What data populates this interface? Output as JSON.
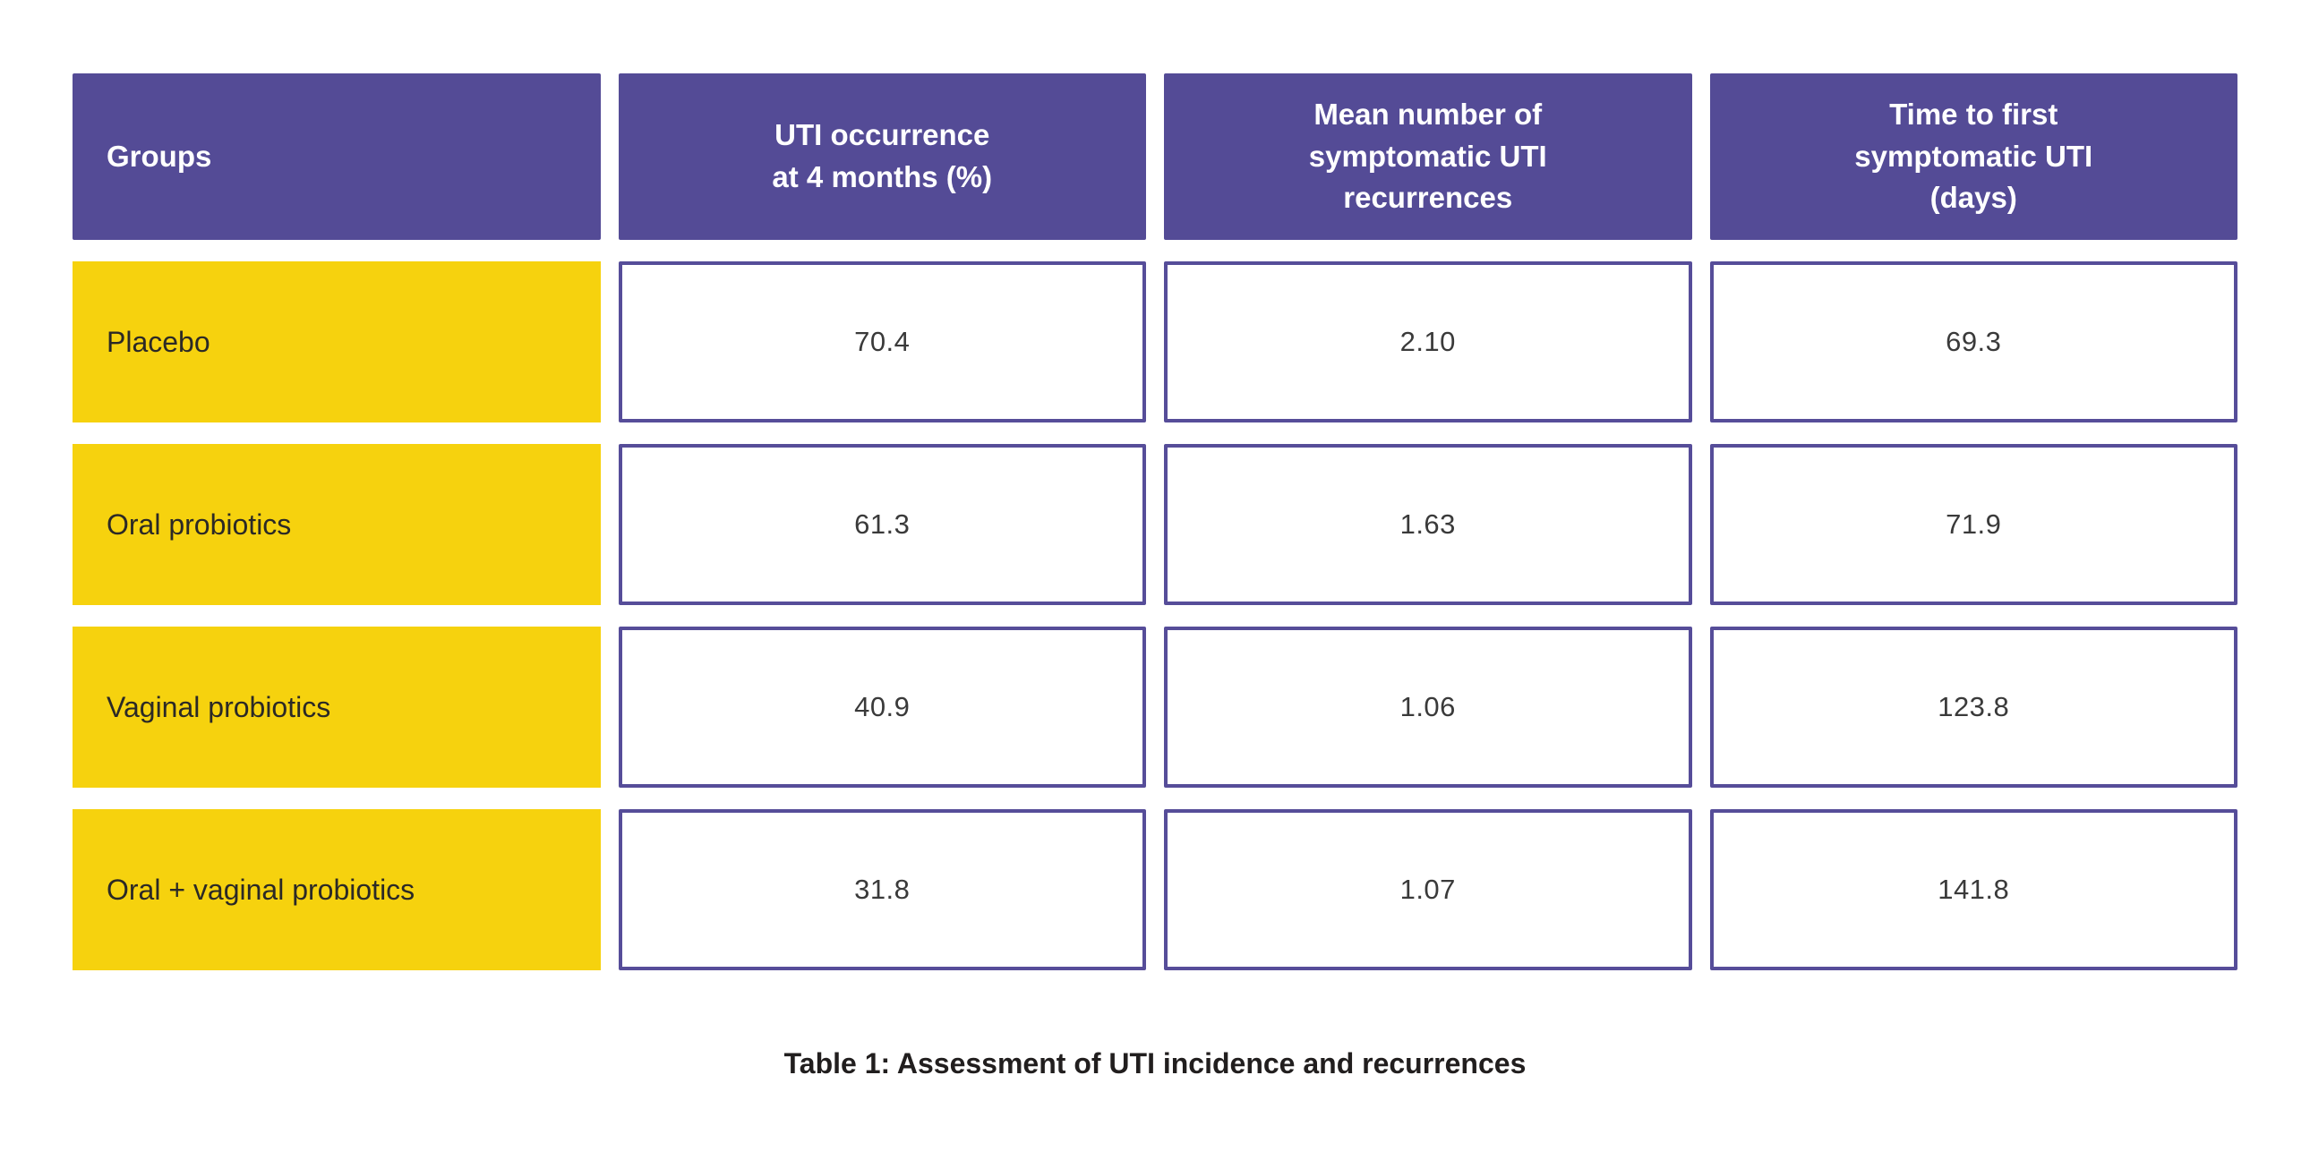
{
  "colors": {
    "page_bg": "#FFFFFF",
    "header_bg": "#544B96",
    "header_text": "#FFFFFF",
    "group_bg": "#F6D20E",
    "group_text": "#2B2926",
    "value_cell_bg": "#FFFFFF",
    "value_cell_border": "#564D99",
    "value_text": "#3A3A3A",
    "caption_text": "#211E1E"
  },
  "table": {
    "columns": [
      "Groups",
      "UTI occurrence\nat 4 months (%)",
      "Mean number of\nsymptomatic UTI\nrecurrences",
      "Time to first\nsymptomatic UTI\n(days)"
    ],
    "rows": [
      {
        "group": "Placebo",
        "values": [
          "70.4",
          "2.10",
          "69.3"
        ]
      },
      {
        "group": "Oral probiotics",
        "values": [
          "61.3",
          "1.63",
          "71.9"
        ]
      },
      {
        "group": "Vaginal probiotics",
        "values": [
          "40.9",
          "1.06",
          "123.8"
        ]
      },
      {
        "group": "Oral + vaginal probiotics",
        "values": [
          "31.8",
          "1.07",
          "141.8"
        ]
      }
    ],
    "caption": "Table 1: Assessment of UTI incidence and recurrences"
  },
  "chart_data": {
    "type": "table",
    "title": "Table 1: Assessment of UTI incidence and recurrences",
    "columns": [
      "Groups",
      "UTI occurrence at 4 months (%)",
      "Mean number of symptomatic UTI recurrences",
      "Time to first symptomatic UTI (days)"
    ],
    "rows": [
      [
        "Placebo",
        70.4,
        2.1,
        69.3
      ],
      [
        "Oral probiotics",
        61.3,
        1.63,
        71.9
      ],
      [
        "Vaginal probiotics",
        40.9,
        1.06,
        123.8
      ],
      [
        "Oral + vaginal probiotics",
        31.8,
        1.07,
        141.8
      ]
    ]
  }
}
